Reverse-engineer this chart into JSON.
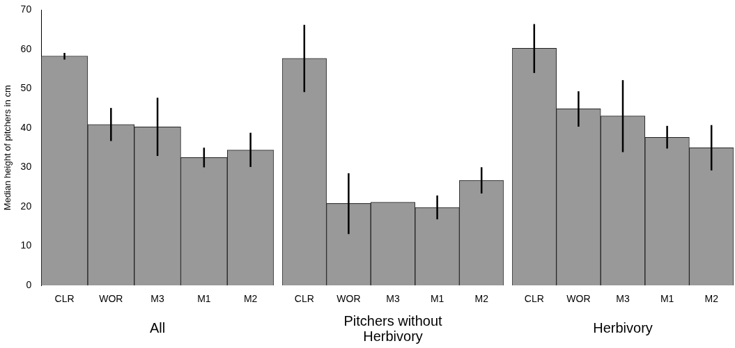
{
  "chart_data": [
    {
      "type": "bar",
      "xlabel": "All",
      "ylabel": "Median height of pitchers in cm",
      "categories": [
        "CLR",
        "WOR",
        "M3",
        "M1",
        "M2"
      ],
      "values": [
        58.3,
        40.9,
        40.3,
        32.5,
        34.4
      ],
      "color": "#999999",
      "errors": [
        [
          57.4,
          59.1
        ],
        [
          36.7,
          45.1
        ],
        [
          32.9,
          47.7
        ],
        [
          30.0,
          35.0
        ],
        [
          30.1,
          38.8
        ]
      ],
      "ylim": [
        0,
        70
      ],
      "yticks": [
        0,
        10,
        20,
        30,
        40,
        50,
        60,
        70
      ],
      "grid": false,
      "legend": false
    },
    {
      "type": "bar",
      "xlabel": "Pitchers without Herbivory",
      "categories": [
        "CLR",
        "WOR",
        "M3",
        "M1",
        "M2"
      ],
      "values": [
        57.1,
        20.6,
        20.9,
        19.6,
        26.4
      ],
      "color": "#999999",
      "errors": [
        [
          48.6,
          65.5
        ],
        [
          12.9,
          28.2
        ],
        null,
        [
          16.6,
          22.6
        ],
        [
          23.1,
          29.7
        ]
      ],
      "ylim": [
        0,
        70
      ],
      "yticks": [
        0,
        10,
        20,
        30,
        40,
        50,
        60,
        70
      ],
      "tick_labels": "x",
      "grid": false,
      "legend": false
    },
    {
      "type": "bar",
      "xlabel": "Herbivory",
      "categories": [
        "CLR",
        "WOR",
        "M3",
        "M1",
        "M2"
      ],
      "values": [
        59.6,
        44.4,
        42.6,
        37.2,
        34.6
      ],
      "color": "#999999",
      "errors": [
        [
          53.4,
          65.7
        ],
        [
          39.9,
          48.8
        ],
        [
          33.5,
          51.6
        ],
        [
          34.4,
          40.1
        ],
        [
          28.9,
          40.3
        ]
      ],
      "ylim": [
        0,
        70
      ],
      "yticks": [
        0,
        10,
        20,
        30,
        40,
        50,
        60,
        70
      ],
      "tick_labels": "x",
      "grid": false,
      "legend": false
    }
  ]
}
